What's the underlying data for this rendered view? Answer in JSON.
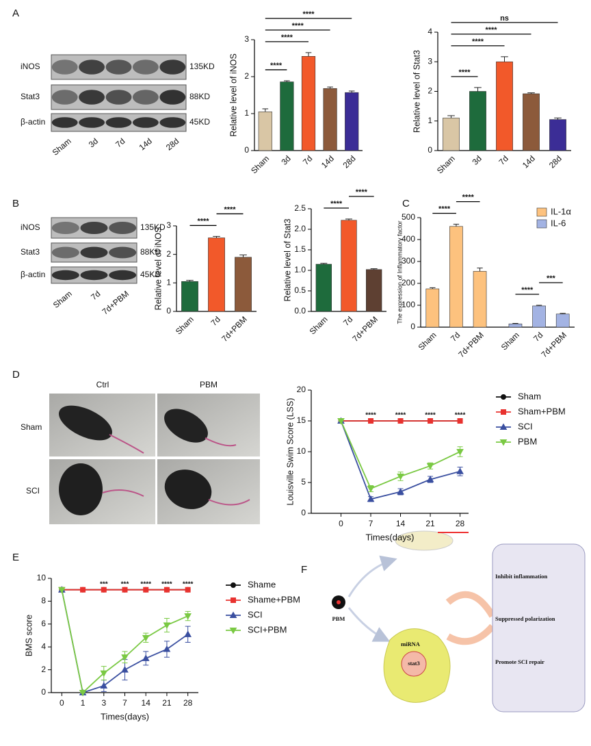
{
  "panel_labels": [
    "A",
    "B",
    "C",
    "D",
    "E",
    "F"
  ],
  "blots": [
    {
      "proteins": [
        "iNOS",
        "Stat3",
        "β-actin"
      ],
      "sizes": [
        "135KD",
        "88KD",
        "45KD"
      ],
      "lanes": [
        "Sham",
        "3d",
        "7d",
        "14d",
        "28d"
      ]
    },
    {
      "proteins": [
        "iNOS",
        "Stat3",
        "β-actin"
      ],
      "sizes": [
        "135KD",
        "88KD",
        "45KD"
      ],
      "lanes": [
        "Sham",
        "7d",
        "7d+PBM"
      ]
    }
  ],
  "photos": {
    "columns": [
      "Ctrl",
      "PBM"
    ],
    "rows": [
      "Sham",
      "SCI"
    ]
  },
  "diagram": {
    "source": "PBM",
    "cell_labels": [
      "miRNA",
      "stat3"
    ],
    "outcomes": [
      "Inhibit inflammation",
      "Suppressed polarization",
      "Promote SCI repair"
    ]
  },
  "chart_data": [
    {
      "type": "bar",
      "ylabel": "Relative level of iNOS",
      "categories": [
        "Sham",
        "3d",
        "7d",
        "14d",
        "28d"
      ],
      "values": [
        1.05,
        1.86,
        2.55,
        1.68,
        1.57
      ],
      "errors": [
        0.08,
        0.03,
        0.1,
        0.04,
        0.04
      ],
      "colors": [
        "#d9c6a5",
        "#1e6b3c",
        "#f2592a",
        "#8c5a3b",
        "#3b2d96"
      ],
      "ylim": [
        0,
        3
      ],
      "yticks": [
        0,
        1,
        2,
        3
      ],
      "comparisons": [
        {
          "between": [
            "Sham",
            "3d"
          ],
          "label": "****"
        },
        {
          "between": [
            "Sham",
            "7d"
          ],
          "label": "****"
        },
        {
          "between": [
            "Sham",
            "14d"
          ],
          "label": "****"
        },
        {
          "between": [
            "Sham",
            "28d"
          ],
          "label": "****"
        }
      ]
    },
    {
      "type": "bar",
      "ylabel": "Relative level of Stat3",
      "categories": [
        "Sham",
        "3d",
        "7d",
        "14d",
        "28d"
      ],
      "values": [
        1.1,
        2.0,
        3.0,
        1.92,
        1.05
      ],
      "errors": [
        0.08,
        0.13,
        0.17,
        0.03,
        0.05
      ],
      "colors": [
        "#d9c6a5",
        "#1e6b3c",
        "#f2592a",
        "#8c5a3b",
        "#3b2d96"
      ],
      "ylim": [
        0,
        4
      ],
      "yticks": [
        0,
        1,
        2,
        3,
        4
      ],
      "comparisons": [
        {
          "between": [
            "Sham",
            "3d"
          ],
          "label": "****"
        },
        {
          "between": [
            "Sham",
            "7d"
          ],
          "label": "****"
        },
        {
          "between": [
            "Sham",
            "14d"
          ],
          "label": "****"
        },
        {
          "between": [
            "Sham",
            "28d"
          ],
          "label": "ns"
        }
      ]
    },
    {
      "type": "bar",
      "ylabel": "Relative level of iNOS",
      "categories": [
        "Sham",
        "7d",
        "7d+PBM"
      ],
      "values": [
        1.05,
        2.58,
        1.9
      ],
      "errors": [
        0.04,
        0.05,
        0.08
      ],
      "colors": [
        "#1e6b3c",
        "#f2592a",
        "#8c5a3b"
      ],
      "ylim": [
        0,
        3
      ],
      "yticks": [
        0,
        1,
        2,
        3
      ],
      "comparisons": [
        {
          "between": [
            "Sham",
            "7d"
          ],
          "label": "****"
        },
        {
          "between": [
            "7d",
            "7d+PBM"
          ],
          "label": "****"
        }
      ]
    },
    {
      "type": "bar",
      "ylabel": "Relative level of Stat3",
      "categories": [
        "Sham",
        "7d",
        "7d+PBM"
      ],
      "values": [
        1.15,
        2.22,
        1.02
      ],
      "errors": [
        0.02,
        0.03,
        0.02
      ],
      "colors": [
        "#1e6b3c",
        "#f2592a",
        "#5e4032"
      ],
      "ylim": [
        0,
        2.5
      ],
      "yticks": [
        {
          "value": 0,
          "label": "0.0"
        },
        0.5,
        {
          "value": 1,
          "label": "1.0"
        },
        1.5,
        {
          "value": 2,
          "label": "2.0"
        },
        2.5
      ],
      "comparisons": [
        {
          "between": [
            "Sham",
            "7d"
          ],
          "label": "****"
        },
        {
          "between": [
            "7d",
            "7d+PBM"
          ],
          "label": "****"
        }
      ]
    },
    {
      "type": "grouped_bar",
      "ylabel": "The expression of Inflammatory factor",
      "categories": [
        "Sham",
        "7d",
        "7d+PBM"
      ],
      "series": [
        {
          "name": "IL-1α",
          "color": "#fdc27e",
          "values": [
            175,
            460,
            255
          ],
          "errors": [
            5,
            10,
            15
          ],
          "comparisons": [
            {
              "between": [
                "Sham",
                "7d"
              ],
              "label": "****"
            },
            {
              "between": [
                "7d",
                "7d+PBM"
              ],
              "label": "****"
            }
          ]
        },
        {
          "name": "IL-6",
          "color": "#a3b3e3",
          "values": [
            15,
            97,
            60
          ],
          "errors": [
            2,
            3,
            3
          ],
          "comparisons": [
            {
              "between": [
                "Sham",
                "7d"
              ],
              "label": "****"
            },
            {
              "between": [
                "7d",
                "7d+PBM"
              ],
              "label": "***"
            }
          ]
        }
      ],
      "ylim": [
        0,
        500
      ],
      "yticks": [
        0,
        100,
        200,
        300,
        400,
        500
      ],
      "legend": "top-right"
    },
    {
      "type": "line",
      "ylabel": "Louisville Swim Score (LSS)",
      "xlabel": "Times(days)",
      "x": [
        0,
        7,
        14,
        21,
        28
      ],
      "xlim": [
        -7,
        30
      ],
      "xticks": [
        0,
        7,
        14,
        21,
        28
      ],
      "ylim": [
        0,
        20
      ],
      "yticks": [
        0,
        5,
        10,
        15,
        20
      ],
      "series": [
        {
          "name": "Sham",
          "color": "#111111",
          "marker": "circle",
          "values": [
            15,
            15,
            15,
            15,
            15
          ]
        },
        {
          "name": "Sham+PBM",
          "color": "#e8322f",
          "marker": "square",
          "values": [
            15,
            15,
            15,
            15,
            15
          ]
        },
        {
          "name": "SCI",
          "color": "#3a4fa0",
          "marker": "triangle",
          "values": [
            15,
            2.3,
            3.5,
            5.5,
            6.8
          ],
          "errors": [
            0,
            0.4,
            0.5,
            0.5,
            0.7
          ]
        },
        {
          "name": "PBM",
          "color": "#7ac943",
          "marker": "triangle-down",
          "values": [
            15,
            4,
            6,
            7.7,
            10
          ],
          "errors": [
            0,
            0.5,
            0.7,
            0.5,
            0.8
          ]
        }
      ],
      "annotations": [
        {
          "at": 7,
          "label": "****"
        },
        {
          "at": 14,
          "label": "****"
        },
        {
          "at": 21,
          "label": "****"
        },
        {
          "at": 28,
          "label": "****"
        }
      ],
      "legend": "right"
    },
    {
      "type": "line",
      "ylabel": "BMS score",
      "xlabel": "Times(days)",
      "categories": [
        "0",
        "1",
        "3",
        "7",
        "14",
        "21",
        "28"
      ],
      "ylim": [
        0,
        10
      ],
      "yticks": [
        0,
        2,
        4,
        6,
        8,
        10
      ],
      "series": [
        {
          "name": "Shame",
          "color": "#111111",
          "marker": "circle",
          "values": [
            9,
            9,
            9,
            9,
            9,
            9,
            9
          ]
        },
        {
          "name": "Shame+PBM",
          "color": "#e8322f",
          "marker": "square",
          "values": [
            9,
            9,
            9,
            9,
            9,
            9,
            9
          ]
        },
        {
          "name": "SCI",
          "color": "#3a4fa0",
          "marker": "triangle",
          "values": [
            9,
            0,
            0.6,
            2.0,
            3.0,
            3.8,
            5.1
          ],
          "errors": [
            0,
            0,
            0.5,
            0.9,
            0.6,
            0.7,
            0.7
          ]
        },
        {
          "name": "SCI+PBM",
          "color": "#7ac943",
          "marker": "triangle-down",
          "values": [
            9,
            0,
            1.7,
            3.1,
            4.8,
            5.9,
            6.7
          ],
          "errors": [
            0,
            0,
            0.6,
            0.5,
            0.4,
            0.6,
            0.4
          ]
        }
      ],
      "annotations": [
        {
          "at": "3",
          "label": "***"
        },
        {
          "at": "7",
          "label": "***"
        },
        {
          "at": "14",
          "label": "****"
        },
        {
          "at": "21",
          "label": "****"
        },
        {
          "at": "28",
          "label": "****"
        }
      ],
      "legend": "right"
    }
  ]
}
